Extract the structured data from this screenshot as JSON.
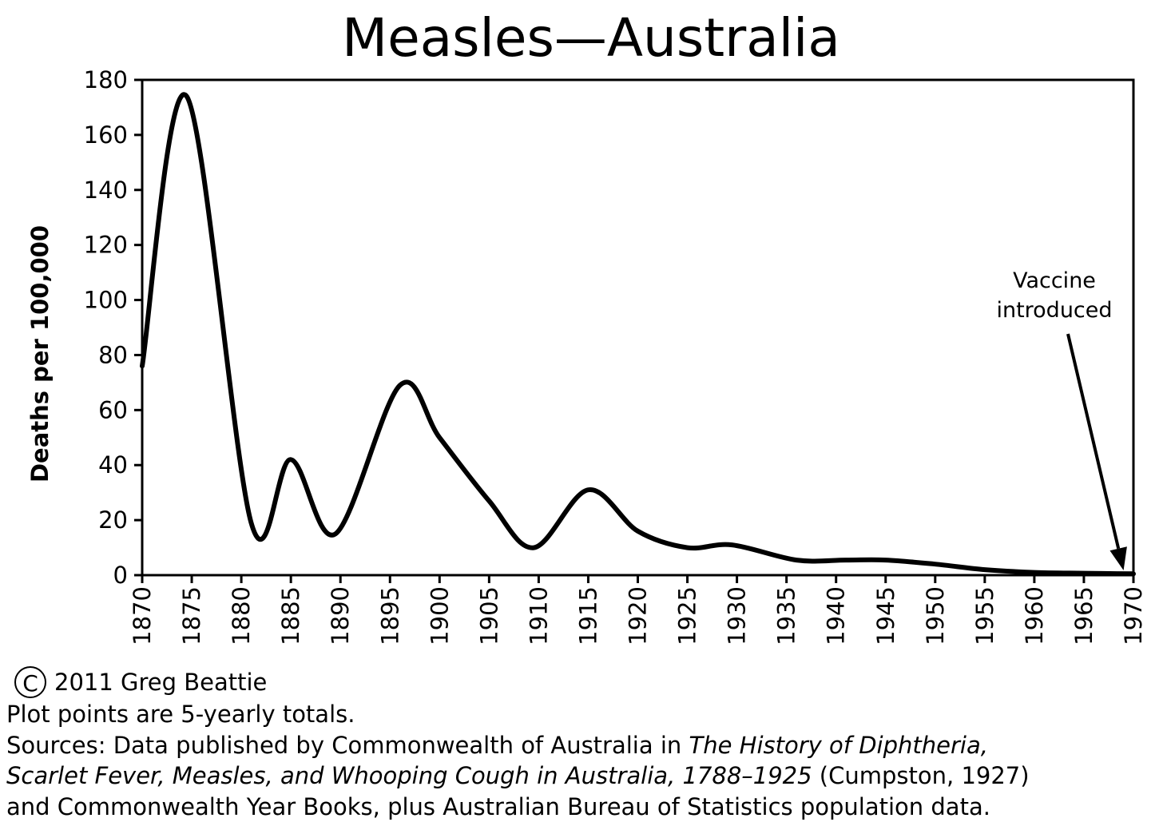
{
  "chart_data": {
    "type": "line",
    "title": "Measles—Australia",
    "ylabel": "Deaths per 100,000",
    "xlabel": "",
    "xlim": [
      1870,
      1970
    ],
    "ylim": [
      0,
      180
    ],
    "x_ticks": [
      "1870",
      "1875",
      "1880",
      "1885",
      "1890",
      "1895",
      "1900",
      "1905",
      "1910",
      "1915",
      "1920",
      "1925",
      "1930",
      "1935",
      "1940",
      "1945",
      "1950",
      "1955",
      "1960",
      "1965",
      "1970"
    ],
    "y_ticks": [
      "0",
      "20",
      "40",
      "60",
      "80",
      "100",
      "120",
      "140",
      "160",
      "180"
    ],
    "grid": false,
    "series": [
      {
        "color": "#000000",
        "x": [
          1870,
          1874.5,
          1881,
          1885,
          1889.5,
          1896,
          1900,
          1905,
          1909.5,
          1915,
          1920,
          1925,
          1929.5,
          1936,
          1941,
          1945,
          1950,
          1955,
          1960,
          1965,
          1970
        ],
        "y": [
          76,
          174,
          19,
          42,
          15,
          69,
          50,
          27,
          10,
          31,
          16,
          10,
          11,
          5.5,
          5.5,
          5.5,
          4,
          2,
          1,
          0.7,
          0.5
        ]
      }
    ],
    "annotations": [
      {
        "text_lines": [
          "Vaccine",
          "introduced"
        ],
        "arrow_to_x": 1969,
        "arrow_to_y": 0
      }
    ]
  },
  "footer": {
    "copyright_symbol": "C",
    "copyright": "2011 Greg Beattie",
    "note": "Plot points are 5-yearly totals.",
    "sources_prefix": "Sources: Data published by Commonwealth of Australia in ",
    "sources_title_1": "The History of Diphtheria,",
    "sources_title_2": "Scarlet Fever, Measles, and Whooping Cough in Australia, 1788–1925",
    "sources_mid": " (Cumpston, 1927)",
    "sources_end": "and Commonwealth Year Books, plus Australian Bureau of Statistics population data."
  }
}
